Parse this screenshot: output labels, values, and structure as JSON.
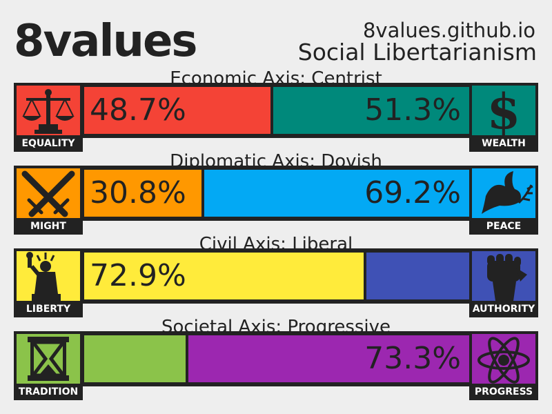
{
  "header": {
    "title": "8values",
    "url": "8values.github.io",
    "ideology": "Social Libertarianism"
  },
  "chart_data": {
    "type": "bar",
    "axes": [
      {
        "label": "Economic Axis: Centrist",
        "left": {
          "name": "EQUALITY",
          "value": 48.7,
          "display": "48.7%",
          "color": "#f44336",
          "icon": "scales-icon"
        },
        "right": {
          "name": "WEALTH",
          "value": 51.3,
          "display": "51.3%",
          "color": "#00897b",
          "icon": "dollar-icon"
        }
      },
      {
        "label": "Diplomatic Axis: Dovish",
        "left": {
          "name": "MIGHT",
          "value": 30.8,
          "display": "30.8%",
          "color": "#ff9800",
          "icon": "crossed-swords-icon"
        },
        "right": {
          "name": "PEACE",
          "value": 69.2,
          "display": "69.2%",
          "color": "#03a9f4",
          "icon": "dove-icon"
        }
      },
      {
        "label": "Civil Axis: Liberal",
        "left": {
          "name": "LIBERTY",
          "value": 72.9,
          "display": "72.9%",
          "color": "#ffeb3b",
          "icon": "statue-of-liberty-icon"
        },
        "right": {
          "name": "AUTHORITY",
          "value": 27.1,
          "display": "",
          "color": "#3f51b5",
          "icon": "raised-fist-icon"
        }
      },
      {
        "label": "Societal Axis: Progressive",
        "left": {
          "name": "TRADITION",
          "value": 26.7,
          "display": "",
          "color": "#8bc34a",
          "icon": "hourglass-icon"
        },
        "right": {
          "name": "PROGRESS",
          "value": 73.3,
          "display": "73.3%",
          "color": "#9c27b0",
          "icon": "atom-icon"
        }
      }
    ]
  }
}
